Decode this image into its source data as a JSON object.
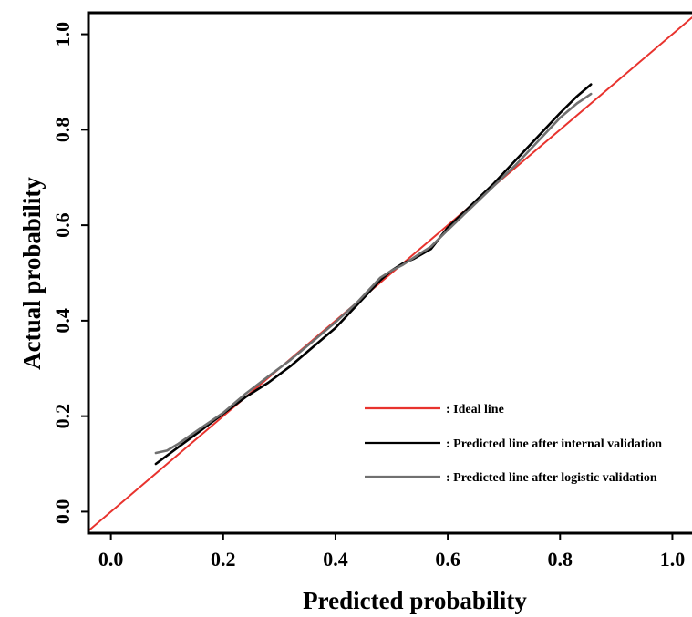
{
  "chart_data": {
    "type": "line",
    "title": "",
    "xlabel": "Predicted probability",
    "ylabel": "Actual probability",
    "xlim": [
      -0.04,
      1.035
    ],
    "ylim": [
      -0.045,
      1.045
    ],
    "x_ticks": [
      "0.0",
      "0.2",
      "0.4",
      "0.6",
      "0.8",
      "1.0"
    ],
    "y_ticks": [
      "0.0",
      "0.2",
      "0.4",
      "0.6",
      "0.8",
      "1.0"
    ],
    "grid": false,
    "legend_position": "bottom-right",
    "series": [
      {
        "name": ": Ideal line",
        "color": "#e8332e",
        "x": [
          -0.04,
          1.035
        ],
        "y": [
          -0.04,
          1.035
        ]
      },
      {
        "name": ": Predicted line after internal validation",
        "color": "#000000",
        "x": [
          0.08,
          0.12,
          0.16,
          0.2,
          0.24,
          0.28,
          0.32,
          0.36,
          0.4,
          0.44,
          0.48,
          0.5,
          0.52,
          0.54,
          0.57,
          0.6,
          0.64,
          0.68,
          0.72,
          0.76,
          0.8,
          0.83,
          0.855
        ],
        "y": [
          0.1,
          0.135,
          0.17,
          0.205,
          0.24,
          0.27,
          0.305,
          0.345,
          0.385,
          0.435,
          0.485,
          0.505,
          0.52,
          0.53,
          0.55,
          0.595,
          0.64,
          0.685,
          0.735,
          0.785,
          0.835,
          0.87,
          0.895
        ]
      },
      {
        "name": ": Predicted line after logistic validation",
        "color": "#707070",
        "x": [
          0.08,
          0.1,
          0.12,
          0.16,
          0.2,
          0.24,
          0.28,
          0.32,
          0.36,
          0.4,
          0.44,
          0.48,
          0.5,
          0.52,
          0.55,
          0.57,
          0.6,
          0.64,
          0.68,
          0.72,
          0.76,
          0.8,
          0.83,
          0.855
        ],
        "y": [
          0.123,
          0.128,
          0.142,
          0.175,
          0.207,
          0.247,
          0.283,
          0.318,
          0.357,
          0.397,
          0.44,
          0.49,
          0.505,
          0.517,
          0.54,
          0.555,
          0.59,
          0.635,
          0.68,
          0.725,
          0.775,
          0.825,
          0.855,
          0.875
        ]
      }
    ]
  }
}
